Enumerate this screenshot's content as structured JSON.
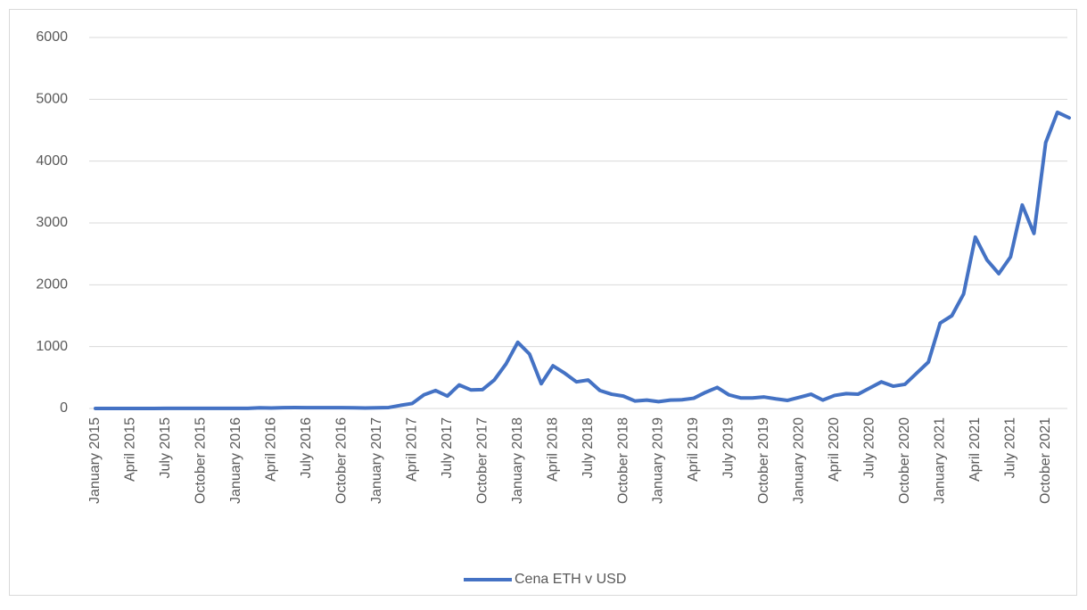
{
  "chart_data": {
    "type": "line",
    "categories": [
      "January 2015",
      null,
      null,
      "April 2015",
      null,
      null,
      "July 2015",
      null,
      null,
      "October 2015",
      null,
      null,
      "January 2016",
      null,
      null,
      "April 2016",
      null,
      null,
      "July 2016",
      null,
      null,
      "October 2016",
      null,
      null,
      "January 2017",
      null,
      null,
      "April 2017",
      null,
      null,
      "July 2017",
      null,
      null,
      "October 2017",
      null,
      null,
      "January 2018",
      null,
      null,
      "April 2018",
      null,
      null,
      "July 2018",
      null,
      null,
      "October 2018",
      null,
      null,
      "January 2019",
      null,
      null,
      "April 2019",
      null,
      null,
      "July 2019",
      null,
      null,
      "October 2019",
      null,
      null,
      "January 2020",
      null,
      null,
      "April 2020",
      null,
      null,
      "July 2020",
      null,
      null,
      "October 2020",
      null,
      null,
      "January 2021",
      null,
      null,
      "April 2021",
      null,
      null,
      "July 2021",
      null,
      null,
      "October 2021",
      null,
      null
    ],
    "series": [
      {
        "name": "Cena ETH v USD",
        "color": "#4472c4",
        "values": [
          0,
          0,
          0,
          0,
          0,
          0,
          1,
          1,
          1,
          1,
          1,
          1,
          1,
          2,
          10,
          8,
          12,
          14,
          12,
          12,
          13,
          12,
          10,
          8,
          10,
          15,
          50,
          80,
          220,
          290,
          200,
          380,
          300,
          305,
          460,
          720,
          1070,
          880,
          400,
          690,
          570,
          430,
          460,
          290,
          230,
          200,
          120,
          135,
          110,
          135,
          140,
          165,
          260,
          340,
          220,
          170,
          170,
          185,
          155,
          130,
          180,
          230,
          135,
          210,
          240,
          230,
          330,
          430,
          360,
          390,
          570,
          750,
          1380,
          1500,
          1850,
          2770,
          2400,
          2180,
          2450,
          3290,
          2830,
          4300,
          4790,
          4700
        ]
      }
    ],
    "ylim": [
      0,
      6000
    ],
    "yticks": [
      0,
      1000,
      2000,
      3000,
      4000,
      5000,
      6000
    ],
    "grid": true,
    "legend": "bottom"
  }
}
